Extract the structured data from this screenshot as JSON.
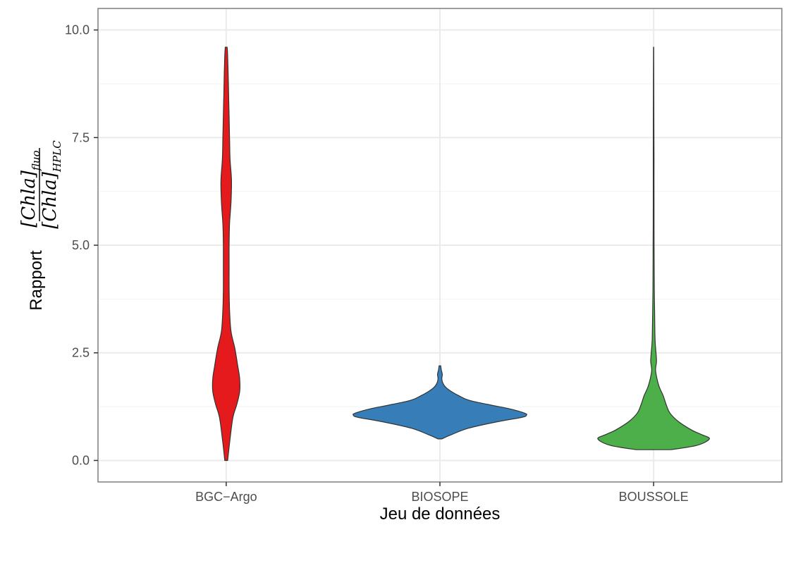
{
  "chart_data": {
    "type": "violin",
    "xlabel": "Jeu de données",
    "ylabel_prefix": "Rapport",
    "ylabel_numerator": "[Chla]",
    "ylabel_numerator_sub": "fluo",
    "ylabel_denominator": "[Chla]",
    "ylabel_denominator_sub": "HPLC",
    "ylim": [
      -0.5,
      10.5
    ],
    "yticks": [
      0.0,
      2.5,
      5.0,
      7.5,
      10.0
    ],
    "ytick_labels": [
      "0.0",
      "2.5",
      "5.0",
      "7.5",
      "10.0"
    ],
    "categories": [
      "BGC−Argo",
      "BIOSOPE",
      "BOUSSOLE"
    ],
    "grid": true,
    "series": [
      {
        "category": "BGC−Argo",
        "color": "#e41a1c",
        "density_profile": [
          [
            0.0,
            0.015
          ],
          [
            0.5,
            0.04
          ],
          [
            1.0,
            0.07
          ],
          [
            1.3,
            0.11
          ],
          [
            1.6,
            0.14
          ],
          [
            1.9,
            0.14
          ],
          [
            2.2,
            0.12
          ],
          [
            2.6,
            0.09
          ],
          [
            3.0,
            0.05
          ],
          [
            3.5,
            0.035
          ],
          [
            4.0,
            0.03
          ],
          [
            4.5,
            0.03
          ],
          [
            5.0,
            0.03
          ],
          [
            5.5,
            0.035
          ],
          [
            6.0,
            0.05
          ],
          [
            6.5,
            0.055
          ],
          [
            7.0,
            0.04
          ],
          [
            7.5,
            0.035
          ],
          [
            8.0,
            0.03
          ],
          [
            8.5,
            0.025
          ],
          [
            9.0,
            0.02
          ],
          [
            9.4,
            0.015
          ],
          [
            9.6,
            0.01
          ]
        ]
      },
      {
        "category": "BIOSOPE",
        "color": "#377eb8",
        "density_profile": [
          [
            0.5,
            0.02
          ],
          [
            0.6,
            0.12
          ],
          [
            0.75,
            0.3
          ],
          [
            0.9,
            0.6
          ],
          [
            1.0,
            0.85
          ],
          [
            1.05,
            0.9
          ],
          [
            1.1,
            0.88
          ],
          [
            1.2,
            0.72
          ],
          [
            1.3,
            0.5
          ],
          [
            1.4,
            0.3
          ],
          [
            1.5,
            0.2
          ],
          [
            1.6,
            0.12
          ],
          [
            1.7,
            0.06
          ],
          [
            1.8,
            0.03
          ],
          [
            1.9,
            0.02
          ],
          [
            2.0,
            0.025
          ],
          [
            2.1,
            0.015
          ],
          [
            2.2,
            0.008
          ]
        ]
      },
      {
        "category": "BOUSSOLE",
        "color": "#4daf4a",
        "density_profile": [
          [
            0.25,
            0.18
          ],
          [
            0.35,
            0.45
          ],
          [
            0.5,
            0.58
          ],
          [
            0.6,
            0.5
          ],
          [
            0.7,
            0.4
          ],
          [
            0.9,
            0.26
          ],
          [
            1.1,
            0.17
          ],
          [
            1.3,
            0.13
          ],
          [
            1.5,
            0.1
          ],
          [
            1.7,
            0.06
          ],
          [
            1.9,
            0.035
          ],
          [
            2.1,
            0.02
          ],
          [
            2.3,
            0.03
          ],
          [
            2.5,
            0.025
          ],
          [
            2.8,
            0.015
          ],
          [
            3.5,
            0.01
          ],
          [
            4.0,
            0.007
          ],
          [
            5.0,
            0.005
          ],
          [
            6.0,
            0.004
          ],
          [
            7.0,
            0.004
          ],
          [
            8.0,
            0.003
          ],
          [
            9.0,
            0.002
          ],
          [
            9.6,
            0.001
          ]
        ]
      }
    ]
  }
}
